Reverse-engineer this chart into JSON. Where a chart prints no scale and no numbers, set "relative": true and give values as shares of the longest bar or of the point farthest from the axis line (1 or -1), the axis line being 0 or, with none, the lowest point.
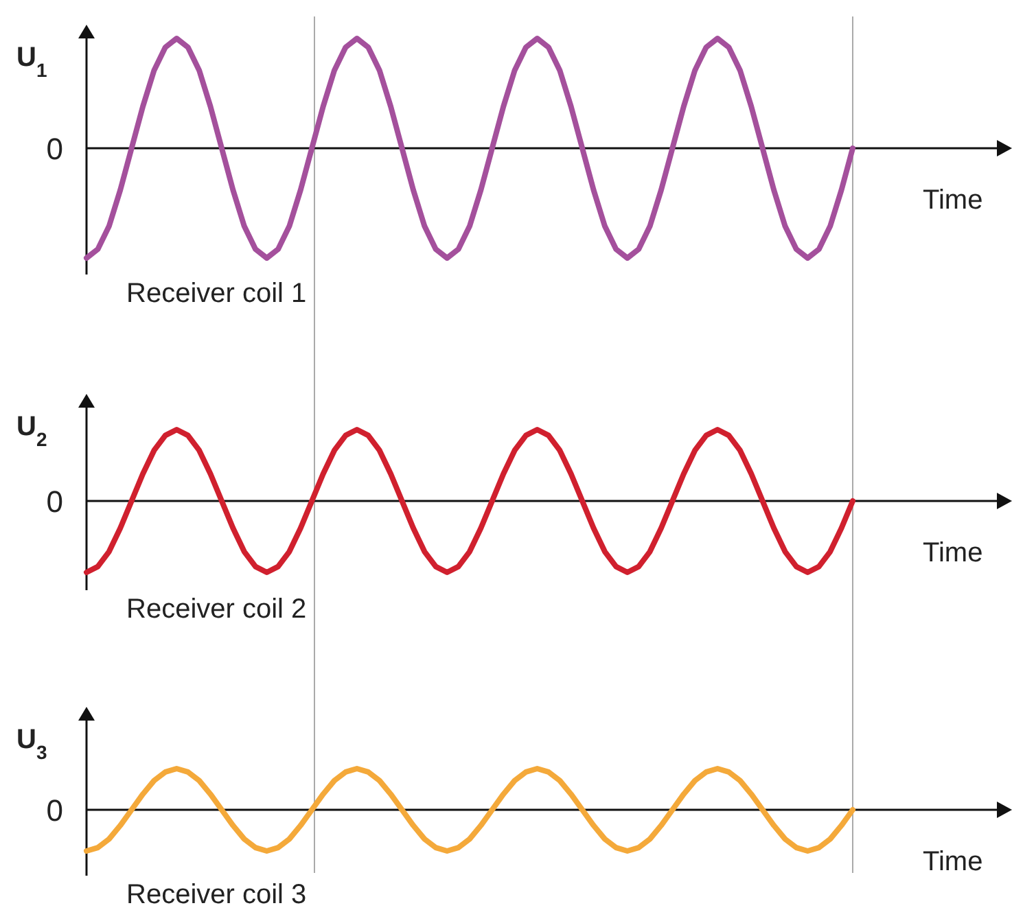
{
  "chart_data": [
    {
      "type": "line",
      "title": "Receiver coil 1",
      "ylabel": "U$_{1}$",
      "xlabel": "Time",
      "annotations": [
        "0"
      ],
      "relative": true,
      "categories": [
        null,
        null,
        null,
        null,
        null,
        null,
        null,
        null,
        null,
        null,
        null,
        null,
        null,
        null,
        null,
        null,
        null,
        null,
        null,
        null,
        null,
        null,
        null,
        null,
        null,
        null,
        null,
        null,
        null,
        null,
        null,
        null,
        null,
        null,
        null,
        null,
        null,
        null,
        null,
        null,
        null,
        null,
        null,
        null,
        null,
        null,
        null,
        null,
        null,
        null,
        null,
        null,
        null,
        null,
        null,
        null,
        null,
        null,
        null,
        null,
        null,
        null,
        null,
        null,
        null,
        null,
        null,
        null,
        null
      ],
      "series": [
        {
          "color": "#a4509c",
          "values": [
            -1,
            -0.92,
            -0.71,
            -0.38,
            0,
            0.38,
            0.71,
            0.92,
            1,
            0.92,
            0.71,
            0.38,
            0,
            -0.38,
            -0.71,
            -0.92,
            -1,
            -0.92,
            -0.71,
            -0.38,
            0,
            0.38,
            0.71,
            0.92,
            1,
            0.92,
            0.71,
            0.38,
            0,
            -0.38,
            -0.71,
            -0.92,
            -1,
            -0.92,
            -0.71,
            -0.38,
            0,
            0.38,
            0.71,
            0.92,
            1,
            0.92,
            0.71,
            0.38,
            0,
            -0.38,
            -0.71,
            -0.92,
            -1,
            -0.92,
            -0.71,
            -0.38,
            0,
            0.38,
            0.71,
            0.92,
            1,
            0.92,
            0.71,
            0.38,
            0,
            -0.38,
            -0.71,
            -0.92,
            -1,
            -0.92,
            -0.71,
            -0.38,
            0
          ]
        }
      ]
    },
    {
      "type": "line",
      "title": "Receiver coil 2",
      "ylabel": "U$_{2}$",
      "xlabel": "Time",
      "annotations": [
        "0"
      ],
      "relative": true,
      "categories": [
        null,
        null,
        null,
        null,
        null,
        null,
        null,
        null,
        null,
        null,
        null,
        null,
        null,
        null,
        null,
        null,
        null,
        null,
        null,
        null,
        null,
        null,
        null,
        null,
        null,
        null,
        null,
        null,
        null,
        null,
        null,
        null,
        null,
        null,
        null,
        null,
        null,
        null,
        null,
        null,
        null,
        null,
        null,
        null,
        null,
        null,
        null,
        null,
        null,
        null,
        null,
        null,
        null,
        null,
        null,
        null,
        null,
        null,
        null,
        null,
        null,
        null,
        null,
        null,
        null,
        null,
        null,
        null,
        null
      ],
      "series": [
        {
          "color": "#d0202e",
          "values": [
            -1,
            -0.92,
            -0.71,
            -0.38,
            0,
            0.38,
            0.71,
            0.92,
            1,
            0.92,
            0.71,
            0.38,
            0,
            -0.38,
            -0.71,
            -0.92,
            -1,
            -0.92,
            -0.71,
            -0.38,
            0,
            0.38,
            0.71,
            0.92,
            1,
            0.92,
            0.71,
            0.38,
            0,
            -0.38,
            -0.71,
            -0.92,
            -1,
            -0.92,
            -0.71,
            -0.38,
            0,
            0.38,
            0.71,
            0.92,
            1,
            0.92,
            0.71,
            0.38,
            0,
            -0.38,
            -0.71,
            -0.92,
            -1,
            -0.92,
            -0.71,
            -0.38,
            0,
            0.38,
            0.71,
            0.92,
            1,
            0.92,
            0.71,
            0.38,
            0,
            -0.38,
            -0.71,
            -0.92,
            -1,
            -0.92,
            -0.71,
            -0.38,
            0
          ]
        }
      ]
    },
    {
      "type": "line",
      "title": "Receiver coil 3",
      "ylabel": "U$_{3}$",
      "xlabel": "Time",
      "annotations": [
        "0"
      ],
      "relative": true,
      "categories": [
        null,
        null,
        null,
        null,
        null,
        null,
        null,
        null,
        null,
        null,
        null,
        null,
        null,
        null,
        null,
        null,
        null,
        null,
        null,
        null,
        null,
        null,
        null,
        null,
        null,
        null,
        null,
        null,
        null,
        null,
        null,
        null,
        null,
        null,
        null,
        null,
        null,
        null,
        null,
        null,
        null,
        null,
        null,
        null,
        null,
        null,
        null,
        null,
        null,
        null,
        null,
        null,
        null,
        null,
        null,
        null,
        null,
        null,
        null,
        null,
        null,
        null,
        null,
        null,
        null,
        null,
        null,
        null,
        null
      ],
      "series": [
        {
          "color": "#f4a93a",
          "values": [
            -1,
            -0.92,
            -0.71,
            -0.38,
            0,
            0.38,
            0.71,
            0.92,
            1,
            0.92,
            0.71,
            0.38,
            0,
            -0.38,
            -0.71,
            -0.92,
            -1,
            -0.92,
            -0.71,
            -0.38,
            0,
            0.38,
            0.71,
            0.92,
            1,
            0.92,
            0.71,
            0.38,
            0,
            -0.38,
            -0.71,
            -0.92,
            -1,
            -0.92,
            -0.71,
            -0.38,
            0,
            0.38,
            0.71,
            0.92,
            1,
            0.92,
            0.71,
            0.38,
            0,
            -0.38,
            -0.71,
            -0.92,
            -1,
            -0.92,
            -0.71,
            -0.38,
            0,
            0.38,
            0.71,
            0.92,
            1,
            0.92,
            0.71,
            0.38,
            0,
            -0.38,
            -0.71,
            -0.92,
            -1,
            -0.92,
            -0.71,
            -0.38,
            0
          ]
        }
      ]
    }
  ]
}
